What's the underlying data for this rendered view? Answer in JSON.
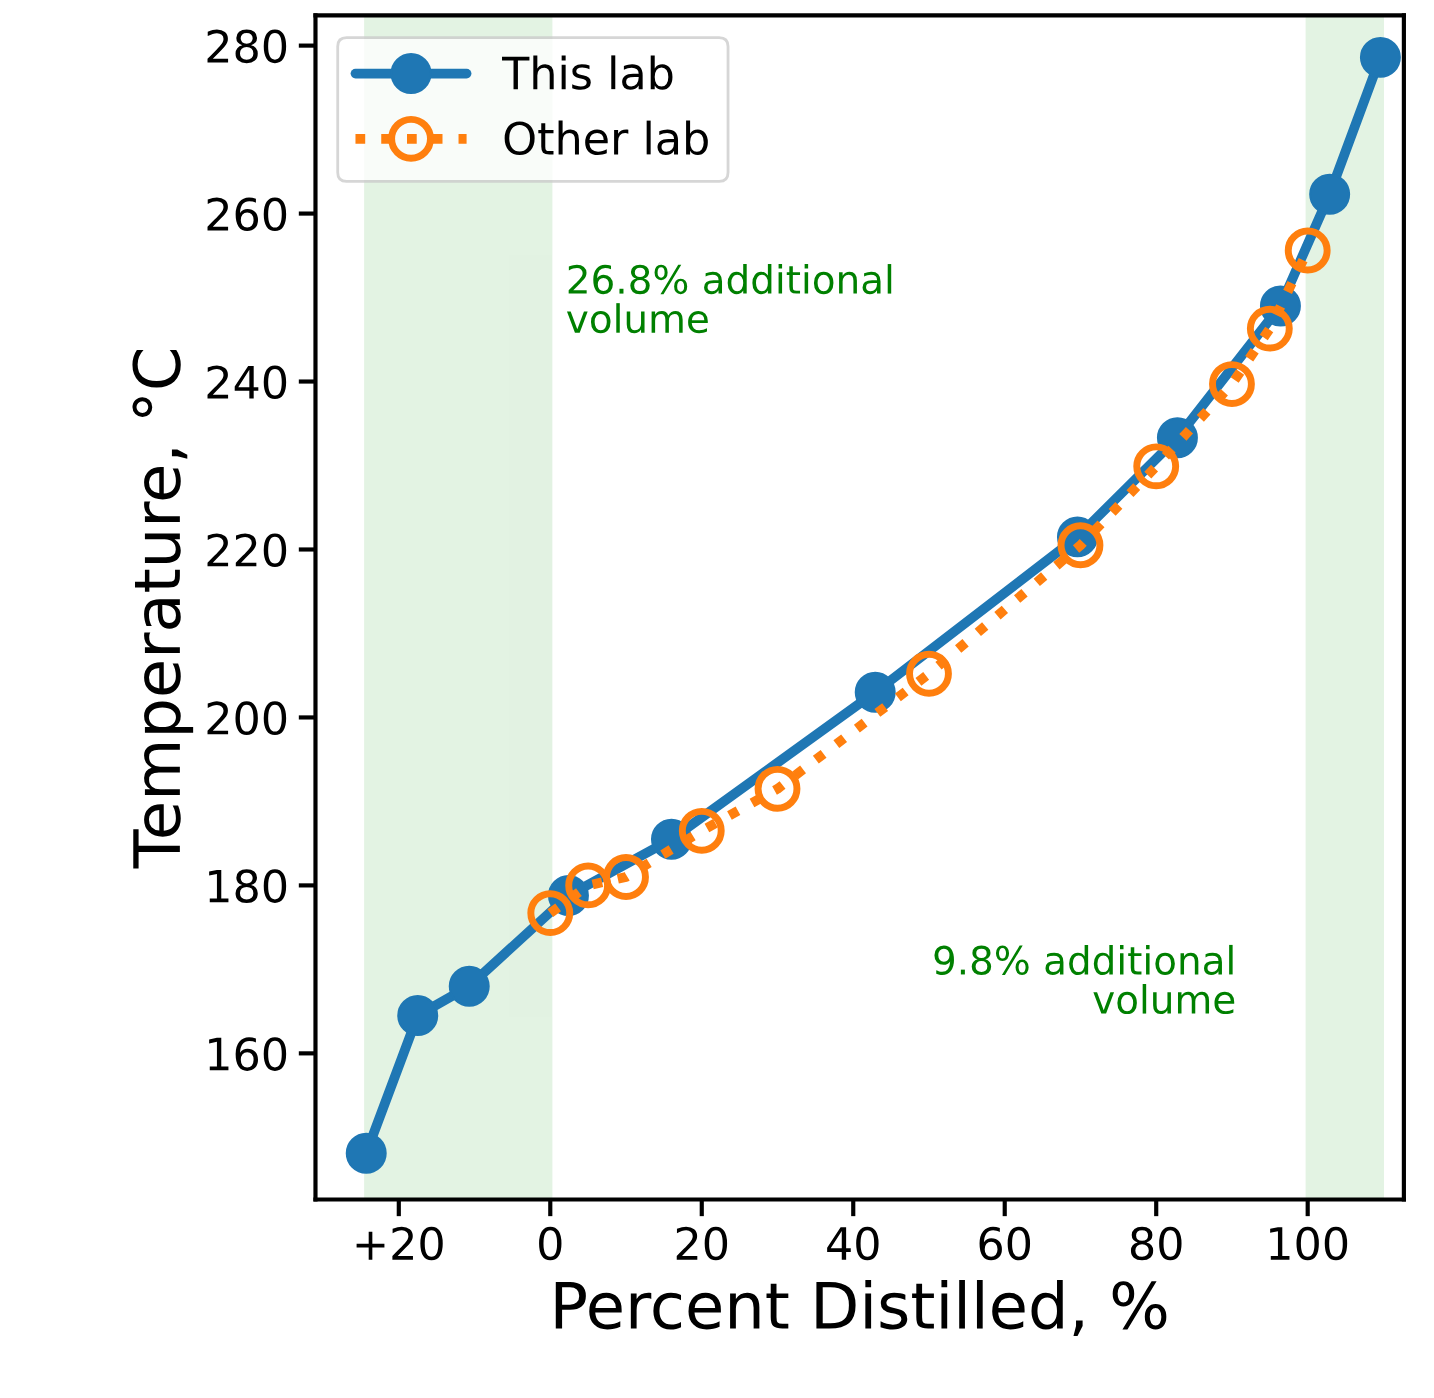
{
  "chart_data": {
    "type": "line",
    "xlabel": "Percent Distilled, %",
    "ylabel": "Temperature, °C",
    "xlim": [
      -31,
      112.7
    ],
    "ylim": [
      142.6,
      283.6
    ],
    "xticks": [
      {
        "value": -20,
        "label": "+20"
      },
      0,
      20,
      40,
      60,
      80,
      100
    ],
    "yticks": [
      160,
      180,
      200,
      220,
      240,
      260,
      280
    ],
    "grid": false,
    "legend": "top left",
    "series": [
      {
        "name": "This lab",
        "color": "#1f77b4",
        "marker": "circle",
        "line_style": "solid",
        "x": [
          -24.3,
          -17.5,
          -10.7,
          2.4,
          16,
          42.9,
          69.6,
          82.8,
          96.4,
          102.9,
          109.6
        ],
        "values": [
          148.1,
          164.5,
          168,
          178.8,
          185.5,
          203,
          221.5,
          233.3,
          249,
          262.3,
          278.6
        ]
      },
      {
        "name": "Other lab",
        "color": "#ff7f0e",
        "marker": "circle",
        "line_style": "dotted",
        "x": [
          0,
          5,
          10,
          20,
          30,
          50,
          70,
          80,
          90,
          95,
          100
        ],
        "values": [
          176.7,
          180,
          181,
          186.5,
          191.5,
          205.2,
          220.5,
          229.9,
          239.7,
          246.3,
          255.6
        ]
      }
    ],
    "bands": [
      {
        "axis": "x",
        "from": -24.3,
        "to": 0,
        "color": "#2ca02c"
      },
      {
        "axis": "x",
        "from": 100,
        "to": 109.8,
        "color": "#2ca02c"
      }
    ],
    "annotations": [
      "26.8% additional\nvolume",
      "9.8% additional\nvolume"
    ]
  }
}
